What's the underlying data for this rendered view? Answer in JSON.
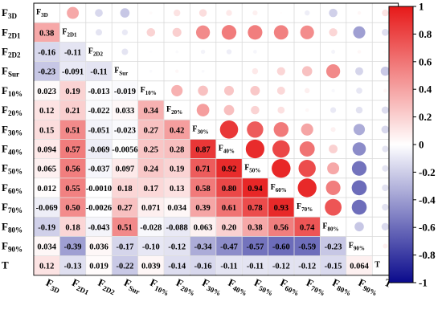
{
  "chart_data": {
    "type": "heatmap",
    "variables": [
      {
        "base": "F",
        "sub": "3D"
      },
      {
        "base": "F",
        "sub": "2D1"
      },
      {
        "base": "F",
        "sub": "2D2"
      },
      {
        "base": "F",
        "sub": "Sur"
      },
      {
        "base": "F",
        "sub": "10%"
      },
      {
        "base": "F",
        "sub": "20%"
      },
      {
        "base": "F",
        "sub": "30%"
      },
      {
        "base": "F",
        "sub": "40%"
      },
      {
        "base": "F",
        "sub": "50%"
      },
      {
        "base": "F",
        "sub": "60%"
      },
      {
        "base": "F",
        "sub": "70%"
      },
      {
        "base": "F",
        "sub": "80%"
      },
      {
        "base": "F",
        "sub": "90%"
      },
      {
        "base": "T",
        "sub": ""
      }
    ],
    "lower_labels": [
      [],
      [
        "0.38"
      ],
      [
        "-0.16",
        "-0.11"
      ],
      [
        "-0.23",
        "-0.091",
        "-0.11"
      ],
      [
        "0.023",
        "0.19",
        "-0.013",
        "-0.019"
      ],
      [
        "0.12",
        "0.21",
        "-0.022",
        "0.033",
        "0.34"
      ],
      [
        "0.15",
        "0.51",
        "-0.051",
        "-0.023",
        "0.27",
        "0.42"
      ],
      [
        "0.094",
        "0.57",
        "-0.069",
        "-0.0056",
        "0.25",
        "0.28",
        "0.87"
      ],
      [
        "0.065",
        "0.56",
        "-0.037",
        "0.097",
        "0.24",
        "0.19",
        "0.71",
        "0.92"
      ],
      [
        "0.012",
        "0.55",
        "-0.0010",
        "0.18",
        "0.17",
        "0.13",
        "0.58",
        "0.80",
        "0.94"
      ],
      [
        "-0.069",
        "0.50",
        "-0.0026",
        "0.27",
        "0.071",
        "0.034",
        "0.39",
        "0.61",
        "0.78",
        "0.93"
      ],
      [
        "-0.19",
        "0.18",
        "-0.043",
        "0.51",
        "-0.028",
        "-0.088",
        "0.063",
        "0.20",
        "0.38",
        "0.56",
        "0.74"
      ],
      [
        "0.034",
        "-0.39",
        "0.036",
        "-0.17",
        "-0.10",
        "-0.12",
        "-0.34",
        "-0.47",
        "-0.57",
        "-0.60",
        "-0.59",
        "-0.23"
      ],
      [
        "0.12",
        "-0.13",
        "0.019",
        "-0.22",
        "0.039",
        "-0.14",
        "-0.16",
        "-0.11",
        "-0.11",
        "-0.12",
        "-0.12",
        "-0.15",
        "0.064"
      ]
    ],
    "colorbar": {
      "range": [
        -1,
        1
      ],
      "ticks": [
        "1",
        "0.8",
        "0.6",
        "0.4",
        "0.2",
        "0",
        "-0.2",
        "-0.4",
        "-0.6",
        "-0.8",
        "-1"
      ],
      "colors": {
        "negative": "#0a0a8c",
        "zero": "#ffffff",
        "positive": "#e61919"
      }
    }
  }
}
